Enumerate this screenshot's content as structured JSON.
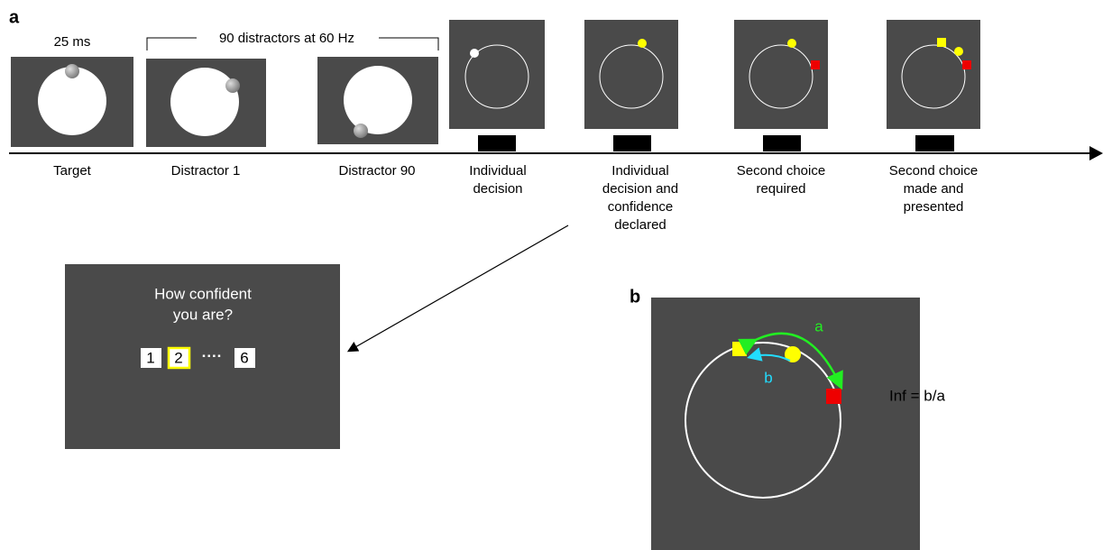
{
  "panel_a": {
    "label": "a",
    "duration": "25 ms",
    "distractor_note": "90 distractors at 60 Hz",
    "steps": [
      [
        "Target"
      ],
      [
        "Distractor 1"
      ],
      [
        "Distractor 90"
      ],
      [
        "Individual",
        "decision"
      ],
      [
        "Individual",
        "decision and",
        "confidence",
        "declared"
      ],
      [
        "Second choice",
        "required"
      ],
      [
        "Second choice",
        "made and",
        "presented"
      ]
    ]
  },
  "popup": {
    "question": [
      "How confident",
      "you are?"
    ],
    "scale": [
      "1",
      "2",
      "····",
      "6"
    ]
  },
  "panel_b": {
    "label": "b",
    "arc_a": "a",
    "arc_b": "b",
    "formula": "Inf = b/a"
  }
}
